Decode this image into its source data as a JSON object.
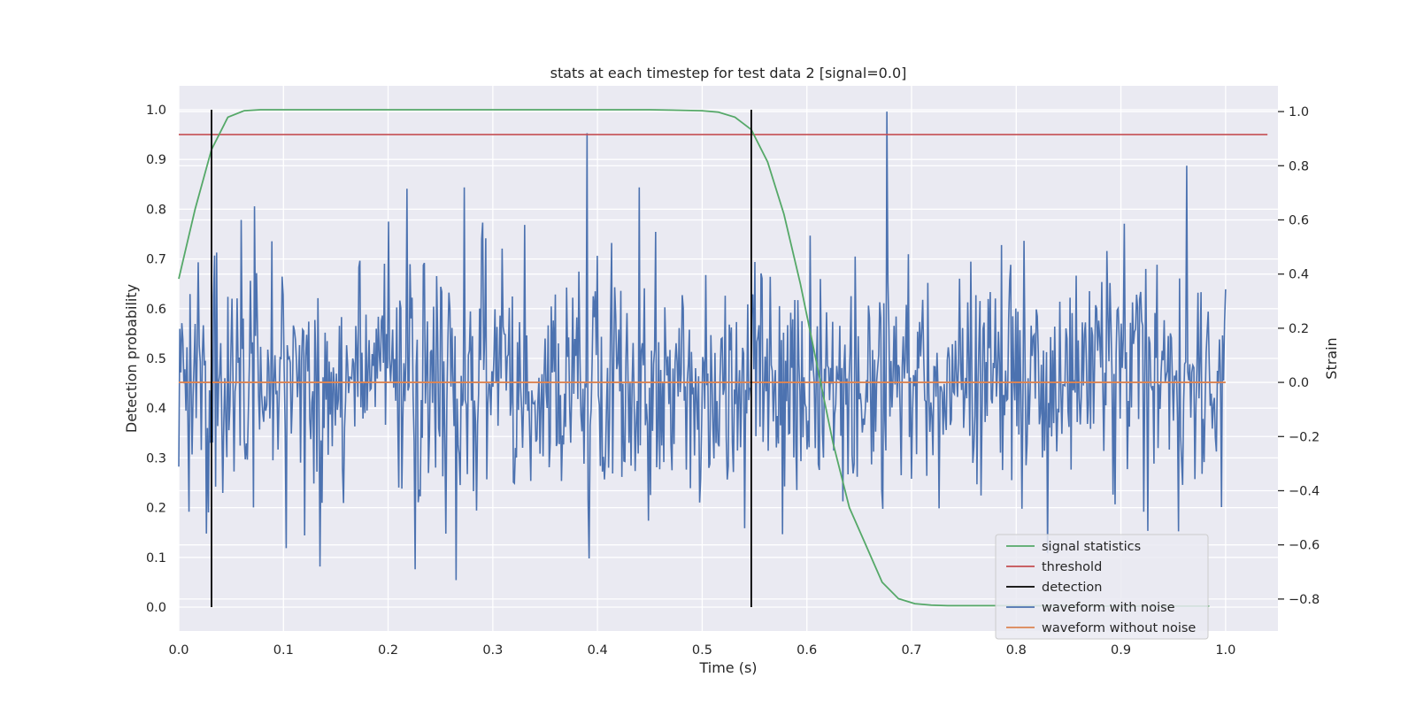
{
  "colors": {
    "background": "#eaeaf2",
    "grid": "#ffffff",
    "signal_statistics": "#55a868",
    "threshold": "#c44e52",
    "detection": "#000000",
    "waveform_with_noise": "#4c72b0",
    "waveform_without_noise": "#dd8452"
  },
  "chart_data": {
    "type": "line",
    "title": "stats at each timestep for test data 2 [signal=0.0]",
    "xlabel": "Time (s)",
    "ylabel_left": "Detection probability",
    "ylabel_right": "Strain",
    "xlim": [
      0.0,
      1.05
    ],
    "ylim_left": [
      -0.048,
      1.048
    ],
    "ylim_right": [
      -0.918,
      1.095
    ],
    "x_ticks": [
      "0.0",
      "0.1",
      "0.2",
      "0.3",
      "0.4",
      "0.5",
      "0.6",
      "0.7",
      "0.8",
      "0.9",
      "1.0"
    ],
    "x_tick_values": [
      0.0,
      0.1,
      0.2,
      0.3,
      0.4,
      0.5,
      0.6,
      0.7,
      0.8,
      0.9,
      1.0
    ],
    "y_left_ticks": [
      "0.0",
      "0.1",
      "0.2",
      "0.3",
      "0.4",
      "0.5",
      "0.6",
      "0.7",
      "0.8",
      "0.9",
      "1.0"
    ],
    "y_left_tick_values": [
      0.0,
      0.1,
      0.2,
      0.3,
      0.4,
      0.5,
      0.6,
      0.7,
      0.8,
      0.9,
      1.0
    ],
    "y_right_ticks": [
      "1.0",
      "0.8",
      "0.6",
      "0.4",
      "0.2",
      "0.0",
      "−0.2",
      "−0.4",
      "−0.6",
      "−0.8"
    ],
    "y_right_tick_values": [
      1.0,
      0.8,
      0.6,
      0.4,
      0.2,
      0.0,
      -0.2,
      -0.4,
      -0.6,
      -0.8
    ],
    "legend": [
      "signal statistics",
      "threshold",
      "detection",
      "waveform with noise",
      "waveform without noise"
    ],
    "legend_position": "lower-right",
    "series": [
      {
        "name": "signal statistics",
        "axis": "left",
        "x": [
          0.0,
          0.0156,
          0.0313,
          0.0469,
          0.0625,
          0.0781,
          0.1,
          0.2,
          0.3,
          0.4,
          0.45,
          0.5,
          0.5156,
          0.5313,
          0.5469,
          0.5625,
          0.5781,
          0.5938,
          0.6094,
          0.625,
          0.6406,
          0.6563,
          0.6719,
          0.6875,
          0.7031,
          0.7188,
          0.7344,
          0.75,
          0.8,
          0.9,
          0.9844
        ],
        "y": [
          0.66,
          0.8,
          0.92,
          0.985,
          0.998,
          1.0,
          1.0,
          1.0,
          1.0,
          1.0,
          1.0,
          0.998,
          0.995,
          0.985,
          0.96,
          0.895,
          0.79,
          0.65,
          0.49,
          0.33,
          0.2,
          0.125,
          0.05,
          0.017,
          0.007,
          0.004,
          0.003,
          0.003,
          0.003,
          0.002,
          0.002
        ]
      },
      {
        "name": "threshold",
        "axis": "left",
        "x": [
          0.0,
          1.04
        ],
        "y": [
          0.95,
          0.95
        ]
      },
      {
        "name": "detection",
        "axis": "left",
        "detection_times": [
          0.0313,
          0.5469
        ],
        "y_range": [
          0.0,
          1.0
        ]
      },
      {
        "name": "waveform with noise",
        "axis": "right",
        "x_range": [
          0.0,
          1.0
        ],
        "n_samples": 1024,
        "mean": 0.0,
        "std": 0.22,
        "peaks": [
          {
            "x": 0.39,
            "y": 0.92
          },
          {
            "x": 0.392,
            "y": -0.65
          },
          {
            "x": 0.676,
            "y": 1.0
          },
          {
            "x": 0.963,
            "y": 0.8
          },
          {
            "x": 0.955,
            "y": -0.55
          },
          {
            "x": 0.265,
            "y": -0.73
          },
          {
            "x": 0.226,
            "y": -0.69
          },
          {
            "x": 0.44,
            "y": 0.72
          },
          {
            "x": 0.06,
            "y": 0.6
          },
          {
            "x": 0.072,
            "y": 0.65
          },
          {
            "x": 0.29,
            "y": 0.59
          },
          {
            "x": 0.83,
            "y": -0.63
          }
        ]
      },
      {
        "name": "waveform without noise",
        "axis": "right",
        "x": [
          0.0,
          1.0
        ],
        "y": [
          0.0,
          0.0
        ]
      }
    ]
  }
}
